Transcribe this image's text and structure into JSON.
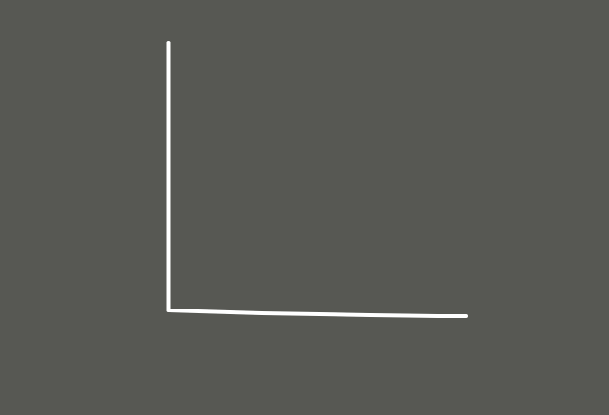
{
  "canvas": {
    "background_color": "#575853",
    "stroke_color": "#ffffff"
  },
  "strokes": [
    {
      "name": "vertical-axis-stroke",
      "shape": "vertical-line"
    },
    {
      "name": "horizontal-axis-stroke",
      "shape": "horizontal-line"
    }
  ]
}
